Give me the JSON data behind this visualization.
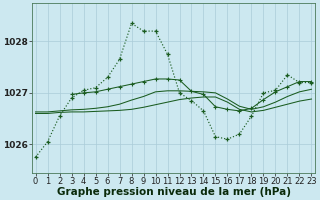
{
  "background_color": "#cce8f0",
  "grid_color": "#aaccd8",
  "line_color": "#1a5c20",
  "title": "Graphe pression niveau de la mer (hPa)",
  "yticks": [
    1026,
    1027,
    1028
  ],
  "ylim": [
    1025.45,
    1028.75
  ],
  "xlim": [
    -0.3,
    23.3
  ],
  "s1_x": [
    0,
    1,
    2,
    3,
    4,
    5,
    6,
    7,
    8,
    9,
    10,
    11,
    12,
    13,
    14,
    15,
    16,
    17,
    18,
    19,
    20,
    21,
    22,
    23
  ],
  "s1_y": [
    1025.75,
    1026.05,
    1026.55,
    1026.9,
    1027.05,
    1027.1,
    1027.3,
    1027.65,
    1028.35,
    1028.2,
    1028.2,
    1027.75,
    1027.0,
    1026.85,
    1026.65,
    1026.15,
    1026.1,
    1026.2,
    1026.55,
    1027.0,
    1027.05,
    1027.35,
    1027.2,
    1027.2
  ],
  "s2_x": [
    0,
    1,
    2,
    3,
    4,
    5,
    6,
    7,
    8,
    9,
    10,
    11,
    12,
    13,
    14,
    15,
    16,
    17,
    18,
    19,
    20,
    21,
    22,
    23
  ],
  "s2_y": [
    1026.6,
    1026.6,
    1026.62,
    1026.63,
    1026.63,
    1026.64,
    1026.65,
    1026.66,
    1026.68,
    1026.72,
    1026.77,
    1026.82,
    1026.87,
    1026.9,
    1026.92,
    1026.92,
    1026.82,
    1026.68,
    1026.63,
    1026.66,
    1026.72,
    1026.78,
    1026.84,
    1026.88
  ],
  "s3_x": [
    0,
    1,
    2,
    3,
    4,
    5,
    6,
    7,
    8,
    9,
    10,
    11,
    12,
    13,
    14,
    15,
    16,
    17,
    18,
    19,
    20,
    21,
    22,
    23
  ],
  "s3_y": [
    1026.63,
    1026.63,
    1026.65,
    1026.67,
    1026.68,
    1026.7,
    1026.73,
    1026.78,
    1026.86,
    1026.93,
    1027.02,
    1027.04,
    1027.04,
    1027.03,
    1027.02,
    1027.0,
    1026.88,
    1026.74,
    1026.68,
    1026.73,
    1026.82,
    1026.93,
    1027.02,
    1027.07
  ],
  "s4_x": [
    3,
    4,
    5,
    6,
    7,
    8,
    9,
    10,
    11,
    12,
    13,
    14,
    15,
    16,
    17,
    18,
    19,
    20,
    21,
    22,
    23
  ],
  "s4_y": [
    1026.97,
    1027.0,
    1027.02,
    1027.07,
    1027.12,
    1027.17,
    1027.22,
    1027.27,
    1027.27,
    1027.25,
    1027.03,
    1026.97,
    1026.73,
    1026.68,
    1026.65,
    1026.7,
    1026.87,
    1027.02,
    1027.12,
    1027.22,
    1027.22
  ],
  "title_fontsize": 7.5,
  "tick_fontsize": 6.5
}
